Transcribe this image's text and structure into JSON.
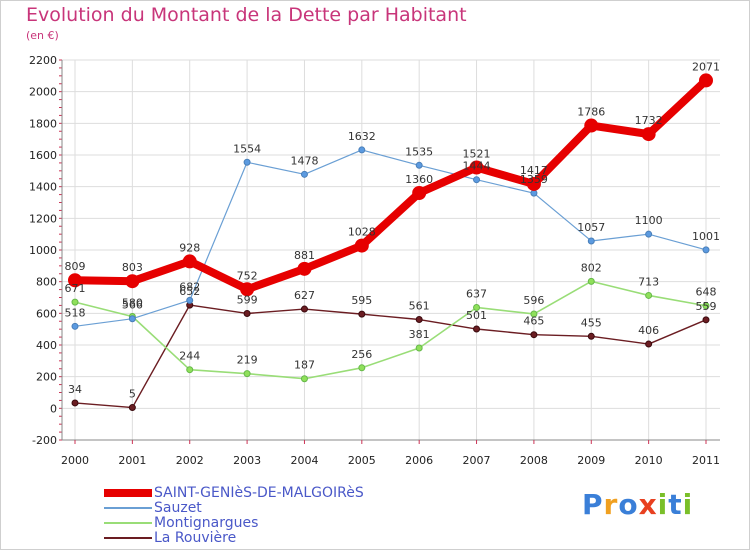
{
  "chart_data": {
    "type": "line",
    "title": "Evolution du Montant de la Dette par Habitant",
    "subtitle": "(en €)",
    "x": [
      "2000",
      "2001",
      "2002",
      "2003",
      "2004",
      "2005",
      "2006",
      "2007",
      "2008",
      "2009",
      "2010",
      "2011"
    ],
    "ylim": [
      -200,
      2200
    ],
    "yticks": [
      -200,
      0,
      200,
      400,
      600,
      800,
      1000,
      1200,
      1400,
      1600,
      1800,
      2000,
      2200
    ],
    "grid": true,
    "legend_position": "bottom-left",
    "series": [
      {
        "name": "SAINT-GENIèS-DE-MALGOIRèS",
        "color": "#e60000",
        "values": [
          809,
          803,
          928,
          752,
          881,
          1028,
          1360,
          1521,
          1417,
          1786,
          1732,
          2071
        ]
      },
      {
        "name": "Sauzet",
        "color": "#6a9fd4",
        "values": [
          518,
          566,
          682,
          1554,
          1478,
          1632,
          1535,
          1444,
          1359,
          1057,
          1100,
          1001
        ]
      },
      {
        "name": "Montignargues",
        "color": "#99dd77",
        "values": [
          671,
          580,
          244,
          219,
          187,
          256,
          381,
          637,
          596,
          802,
          713,
          648
        ]
      },
      {
        "name": "La Rouvière",
        "color": "#6b1d22",
        "values": [
          34,
          5,
          652,
          599,
          627,
          595,
          561,
          501,
          465,
          455,
          406,
          559
        ]
      }
    ]
  },
  "logo": {
    "letters": [
      "P",
      "r",
      "o",
      "x",
      "i",
      "t",
      "i"
    ],
    "colors": [
      "#3a7fd8",
      "#f0a020",
      "#3a7fd8",
      "#e84020",
      "#7abf2a",
      "#3a7fd8",
      "#7abf2a"
    ]
  }
}
